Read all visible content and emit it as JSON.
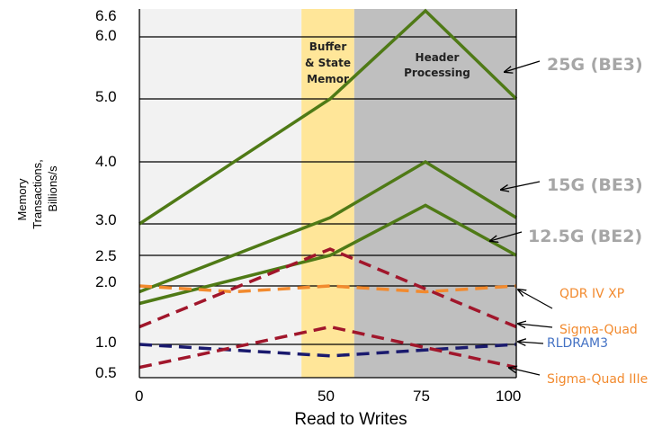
{
  "chart_data": {
    "type": "line",
    "title": "",
    "xlabel": "Read to Writes",
    "ylabel_lines": [
      "Memory",
      "Transactions,",
      "Billions/s"
    ],
    "x_ticks": [
      "0",
      "50",
      "75",
      "100"
    ],
    "y_ticks": [
      "0.5",
      "1.0",
      "2.0",
      "2.5",
      "3.0",
      "4.0",
      "5.0",
      "6.0",
      "6.6"
    ],
    "ylim_labels": [
      "0.5",
      "6.6"
    ],
    "bands": [
      {
        "label": "",
        "from": 0,
        "to": 0.43,
        "color": "#f2f2f2"
      },
      {
        "label_lines": [
          "Buffer",
          "& State",
          "Memor"
        ],
        "from": 0.43,
        "to": 0.57,
        "color": "#ffe699"
      },
      {
        "label_lines": [
          "Header",
          "Processing"
        ],
        "from": 0.57,
        "to": 1.0,
        "color": "#bfbfbf"
      }
    ],
    "series": [
      {
        "name": "25G (BE3)",
        "style": "solid",
        "color": "#4f7a16",
        "label_color": "#a6a6a6",
        "points": [
          [
            0,
            3.0
          ],
          [
            50,
            5.0
          ],
          [
            75,
            6.6
          ],
          [
            100,
            5.0
          ]
        ]
      },
      {
        "name": "15G (BE3)",
        "style": "solid",
        "color": "#4f7a16",
        "label_color": "#a6a6a6",
        "points": [
          [
            0,
            1.9
          ],
          [
            50,
            3.1
          ],
          [
            75,
            4.0
          ],
          [
            100,
            3.1
          ]
        ]
      },
      {
        "name": "12.5G (BE2)",
        "style": "solid",
        "color": "#4f7a16",
        "label_color": "#a6a6a6",
        "points": [
          [
            0,
            1.7
          ],
          [
            50,
            2.5
          ],
          [
            75,
            3.3
          ],
          [
            100,
            2.5
          ]
        ]
      },
      {
        "name": "QDR IV XP",
        "style": "dashed",
        "color": "#f28a2e",
        "label_color": "#f28a2e",
        "points": [
          [
            0,
            2.0
          ],
          [
            25,
            1.9
          ],
          [
            50,
            2.0
          ],
          [
            75,
            1.9
          ],
          [
            100,
            2.0
          ]
        ]
      },
      {
        "name": "Sigma-Quad",
        "style": "dashed",
        "color": "#a1162b",
        "label_color": "#f28a2e",
        "points": [
          [
            0,
            1.3
          ],
          [
            50,
            2.6
          ],
          [
            100,
            1.3
          ]
        ]
      },
      {
        "name": "RLDRAM3",
        "style": "dashed",
        "color": "#1a1a6e",
        "label_color": "#4472c4",
        "points": [
          [
            0,
            1.0
          ],
          [
            50,
            0.8
          ],
          [
            100,
            1.0
          ]
        ]
      },
      {
        "name": "Sigma-Quad IIIe",
        "style": "dashed",
        "color": "#a1162b",
        "label_color": "#f28a2e",
        "points": [
          [
            0,
            0.6
          ],
          [
            50,
            1.3
          ],
          [
            100,
            0.6
          ]
        ]
      }
    ],
    "grid": true,
    "legend": "right"
  }
}
